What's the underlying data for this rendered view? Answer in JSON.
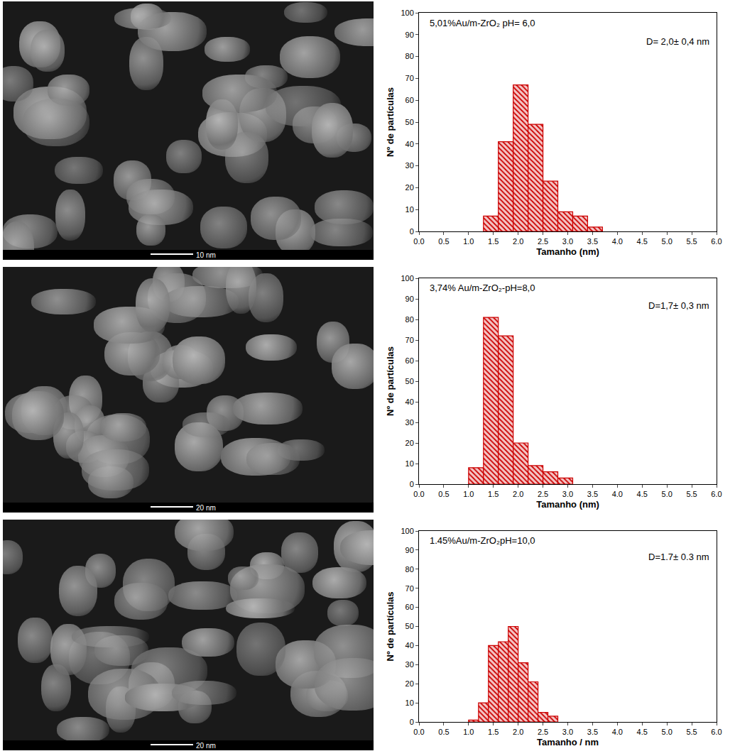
{
  "micrographs": [
    {
      "scale_bar": "10 nm"
    },
    {
      "scale_bar": "20 nm"
    },
    {
      "scale_bar": "20 nm"
    }
  ],
  "chart_data": [
    {
      "type": "histogram",
      "title": "5,01%Au/m-ZrO₂ pH= 6,0",
      "annotation": "D= 2,0± 0,4 nm",
      "bins": [
        1.3,
        1.6,
        1.9,
        2.2,
        2.5,
        2.8,
        3.1,
        3.4,
        3.7
      ],
      "counts": [
        7,
        41,
        67,
        49,
        23,
        9,
        7,
        2
      ],
      "color": "#cc0000",
      "xlabel": "Tamanho (nm)",
      "ylabel": "Nº de partículas",
      "xlim": [
        0,
        6
      ],
      "ylim": [
        0,
        100
      ],
      "xticks": [
        {
          "value": 0,
          "label": "0.0"
        },
        {
          "value": 0.5,
          "label": "0.5"
        },
        {
          "value": 1,
          "label": "1.0"
        },
        {
          "value": 1.5,
          "label": "1.5"
        },
        {
          "value": 2,
          "label": "2.0"
        },
        {
          "value": 2.5,
          "label": "2.5"
        },
        {
          "value": 3,
          "label": "3.0"
        },
        {
          "value": 3.5,
          "label": "3.5"
        },
        {
          "value": 4,
          "label": "4.0"
        },
        {
          "value": 4.5,
          "label": "4.5"
        },
        {
          "value": 5,
          "label": "5.0"
        },
        {
          "value": 5.5,
          "label": "5.5"
        },
        {
          "value": 6,
          "label": "6.0"
        }
      ],
      "yticks": [
        0,
        10,
        20,
        30,
        40,
        50,
        60,
        70,
        80,
        90,
        100
      ],
      "grid": false
    },
    {
      "type": "histogram",
      "title": "3,74% Au/m-ZrO₂-pH=8,0",
      "annotation": "D=1,7± 0,3 nm",
      "bins": [
        1.0,
        1.3,
        1.6,
        1.9,
        2.2,
        2.5,
        2.8,
        3.1
      ],
      "counts": [
        8,
        81,
        72,
        20,
        9,
        6,
        3
      ],
      "color": "#cc0000",
      "xlabel": "Tamanho (nm)",
      "ylabel": "Nº de partículas",
      "xlim": [
        0,
        6
      ],
      "ylim": [
        0,
        100
      ],
      "xticks": [
        {
          "value": 0,
          "label": "0.0"
        },
        {
          "value": 0.5,
          "label": "0.5"
        },
        {
          "value": 1,
          "label": "1.0"
        },
        {
          "value": 1.5,
          "label": "1.5"
        },
        {
          "value": 2,
          "label": "2.0"
        },
        {
          "value": 2.5,
          "label": "2.5"
        },
        {
          "value": 3,
          "label": "3.0"
        },
        {
          "value": 3.5,
          "label": "3.5"
        },
        {
          "value": 4,
          "label": "4.0"
        },
        {
          "value": 4.5,
          "label": "4.5"
        },
        {
          "value": 5,
          "label": "5.0"
        },
        {
          "value": 5.5,
          "label": "5.5"
        },
        {
          "value": 6,
          "label": "6.0"
        }
      ],
      "yticks": [
        0,
        10,
        20,
        30,
        40,
        50,
        60,
        70,
        80,
        90,
        100
      ],
      "grid": false
    },
    {
      "type": "histogram",
      "title": "1.45%Au/m-ZrO₂pH=10,0",
      "annotation": "D=1.7± 0.3 nm",
      "bins": [
        1.0,
        1.2,
        1.4,
        1.6,
        1.8,
        2.0,
        2.2,
        2.4,
        2.6,
        2.8
      ],
      "counts": [
        1,
        10,
        40,
        42,
        50,
        31,
        21,
        5,
        3
      ],
      "color": "#cc0000",
      "xlabel": "Tamanho / nm",
      "ylabel": "Nº de partículas",
      "xlim": [
        0,
        6
      ],
      "ylim": [
        0,
        100
      ],
      "xticks": [
        {
          "value": 0,
          "label": "0.0"
        },
        {
          "value": 0.5,
          "label": "0.5"
        },
        {
          "value": 1,
          "label": "1.0"
        },
        {
          "value": 1.5,
          "label": "1.5"
        },
        {
          "value": 2,
          "label": "2.0"
        },
        {
          "value": 2.5,
          "label": "2.5"
        },
        {
          "value": 3,
          "label": "3.0"
        },
        {
          "value": 3.5,
          "label": "3.5"
        },
        {
          "value": 4,
          "label": "4.0"
        },
        {
          "value": 4.5,
          "label": "4.5"
        },
        {
          "value": 5,
          "label": "5.0"
        },
        {
          "value": 5.5,
          "label": "5.5"
        },
        {
          "value": 6,
          "label": "6.0"
        }
      ],
      "yticks": [
        0,
        10,
        20,
        30,
        40,
        50,
        60,
        70,
        80,
        90,
        100
      ],
      "grid": false
    }
  ]
}
